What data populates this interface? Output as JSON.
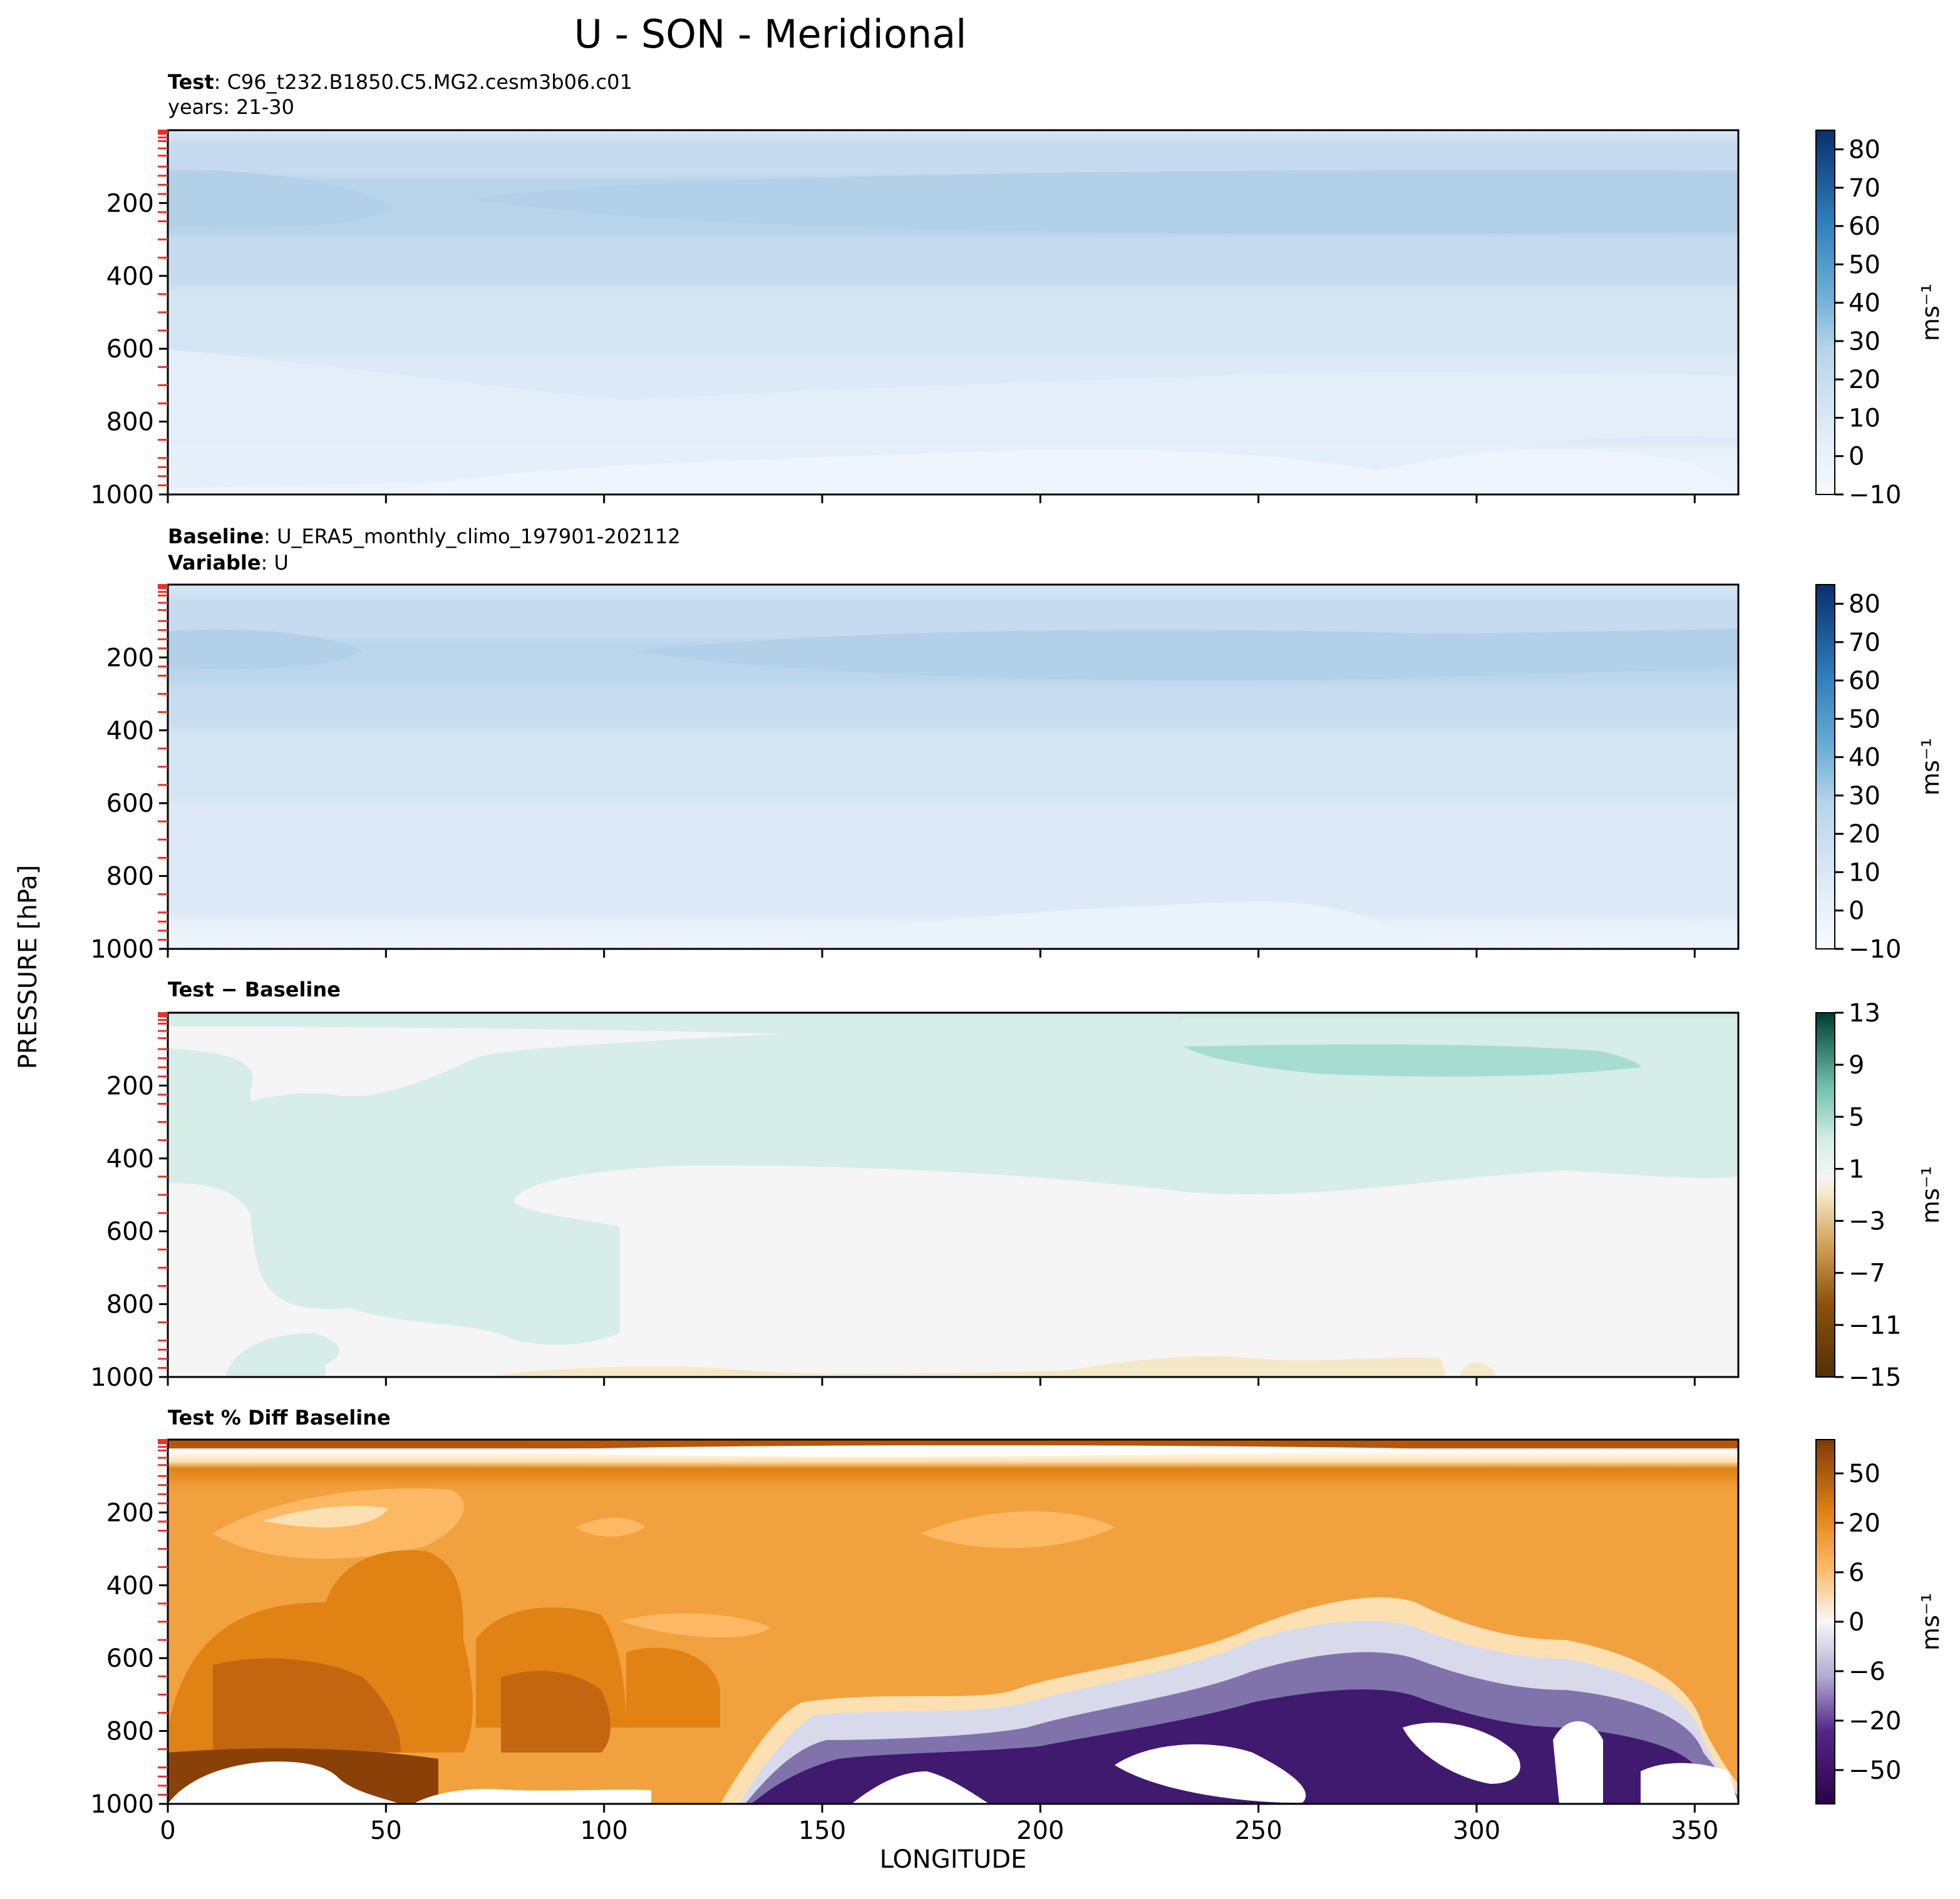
{
  "figure": {
    "title": "U - SON - Meridional",
    "xlabel": "LONGITUDE",
    "ylabel": "PRESSURE [hPa]"
  },
  "panels": [
    {
      "id": "test",
      "title_lines": [
        {
          "bold": "Test",
          "text": ": C96_t232.B1850.C5.MG2.cesm3b06.c01"
        },
        {
          "bold": "",
          "text": "years: 21-30"
        }
      ],
      "colormap": "Blues",
      "colorbar": {
        "ticks": [
          "80",
          "70",
          "60",
          "50",
          "40",
          "30",
          "20",
          "10",
          "0",
          "−10"
        ],
        "label": "ms⁻¹"
      }
    },
    {
      "id": "baseline",
      "title_lines": [
        {
          "bold": "Baseline",
          "text": ": U_ERA5_monthly_climo_197901-202112"
        },
        {
          "bold": "Variable",
          "text": ": U"
        }
      ],
      "colormap": "Blues",
      "colorbar": {
        "ticks": [
          "80",
          "70",
          "60",
          "50",
          "40",
          "30",
          "20",
          "10",
          "0",
          "−10"
        ],
        "label": "ms⁻¹"
      }
    },
    {
      "id": "diff",
      "title_lines": [
        {
          "bold": "Test − Baseline",
          "text": ""
        }
      ],
      "colormap": "BrBG",
      "colorbar": {
        "ticks": [
          "13",
          "9",
          "5",
          "1",
          "−3",
          "−7",
          "−11",
          "−15"
        ],
        "label": "ms⁻¹"
      }
    },
    {
      "id": "pctdiff",
      "title_lines": [
        {
          "bold": "Test % Diff Baseline",
          "text": ""
        }
      ],
      "colormap": "PuOr",
      "colorbar": {
        "ticks": [
          "50",
          "20",
          "6",
          "0",
          "−6",
          "−20",
          "−50"
        ],
        "label": "ms⁻¹"
      }
    }
  ],
  "chart_data": {
    "type": "heatmap",
    "title": "U - SON - Meridional",
    "xlabel": "LONGITUDE",
    "ylabel": "PRESSURE [hPa]",
    "x_ticks": [
      0,
      50,
      100,
      150,
      200,
      250,
      300,
      350
    ],
    "y_ticks": [
      200,
      400,
      600,
      800,
      1000
    ],
    "xlim": [
      0,
      360
    ],
    "ylim": [
      1000,
      0
    ],
    "y_inverted": true,
    "panels": [
      {
        "name": "Test",
        "colorbar_range": [
          -10,
          85
        ],
        "levels_pressure": [
          0,
          50,
          100,
          250,
          400,
          750,
          900,
          1000
        ],
        "levels_value": [
          10,
          20,
          30,
          40,
          30,
          20,
          10,
          5
        ]
      },
      {
        "name": "Baseline",
        "colorbar_range": [
          -10,
          85
        ],
        "levels_pressure": [
          0,
          50,
          100,
          200,
          400,
          600,
          900,
          1000
        ],
        "levels_value": [
          10,
          20,
          30,
          40,
          30,
          20,
          10,
          5
        ]
      },
      {
        "name": "Test − Baseline",
        "colorbar_range": [
          -15,
          13
        ],
        "levels_pressure": [
          0,
          150,
          450,
          800,
          1000
        ],
        "levels_value": [
          1.5,
          3,
          1.5,
          0.5,
          -1
        ]
      },
      {
        "name": "Test % Diff Baseline",
        "colorbar_range": [
          -70,
          70
        ],
        "levels_pressure": [
          0,
          200,
          500,
          800,
          950
        ],
        "levels_value": [
          20,
          10,
          15,
          -20,
          -50
        ]
      }
    ],
    "grid": false
  },
  "colors": {
    "blues": [
      "#f7fbff",
      "#e3eef9",
      "#d0e1f2",
      "#b7d4ea",
      "#94c4df",
      "#6aaed6",
      "#4a98c9",
      "#2e7ebc",
      "#1764ab",
      "#084a91"
    ],
    "brbg_pos": [
      "#f5f5f5",
      "#d6ede8",
      "#a7dcd1",
      "#6cc0ab",
      "#35978f",
      "#0c6d63",
      "#01473c"
    ],
    "brbg_neg": [
      "#f5f5f5",
      "#f5e8c8",
      "#e9cc8d",
      "#cd9b4f",
      "#ab6d1e",
      "#8c510a",
      "#5a3306"
    ],
    "puor_pos": [
      "#fde0b2",
      "#fdb863",
      "#f2a13f",
      "#e08214",
      "#c36610",
      "#a34c07",
      "#7f3b08"
    ],
    "puor_neg": [
      "#f7f7f7",
      "#d8daeb",
      "#b2abd2",
      "#8073ac",
      "#542788",
      "#3f1a6e",
      "#2d004b"
    ],
    "tick_red": "#e8312a"
  }
}
